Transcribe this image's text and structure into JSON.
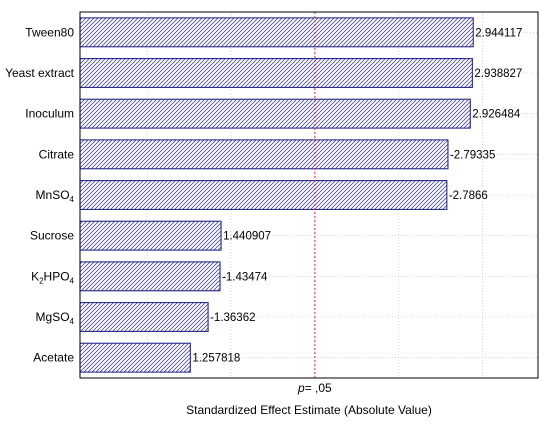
{
  "chart_data": {
    "type": "bar",
    "orientation": "horizontal",
    "title": "",
    "xlabel": "Standardized Effect Estimate (Absolute Value)",
    "ylabel": "",
    "categories": [
      "Tween80",
      "Yeast extract",
      "Inoculum",
      "Citrate",
      "MnSO4",
      "Sucrose",
      "K2HPO4",
      "MgSO4",
      "Acetate"
    ],
    "category_labels": [
      {
        "base": "Tween80",
        "sub": "",
        "sub_base": ""
      },
      {
        "base": "Yeast extract",
        "sub": "",
        "sub_base": ""
      },
      {
        "base": "Inoculum",
        "sub": "",
        "sub_base": ""
      },
      {
        "base": "Citrate",
        "sub": "",
        "sub_base": ""
      },
      {
        "base": "MnSO",
        "sub": "4",
        "sub_base": ""
      },
      {
        "base": "Sucrose",
        "sub": "",
        "sub_base": ""
      },
      {
        "base": "K",
        "sub": "2",
        "sub_base": "HPO",
        "sub2": "4"
      },
      {
        "base": "MgSO",
        "sub": "4",
        "sub_base": ""
      },
      {
        "base": "Acetate",
        "sub": "",
        "sub_base": ""
      }
    ],
    "values": [
      2.944117,
      2.938827,
      2.926484,
      2.79335,
      2.7866,
      1.440907,
      1.43474,
      1.36362,
      1.257818
    ],
    "value_labels": [
      "2.944117",
      "2.938827",
      "2.926484",
      "-2.79335",
      "-2.7866",
      "1.440907",
      "-1.43474",
      "-1.36362",
      "1.257818"
    ],
    "xlim": [
      0.6,
      3.33
    ],
    "reference_line": {
      "value": 2.0,
      "label_italic": "p",
      "label_rest": "= ,05"
    },
    "grid": true,
    "legend": "none",
    "colors": {
      "bar_stroke": "#2a2a8c",
      "hatch": "#4a4a9a",
      "ref_line": "#cc3344",
      "grid": "#bbbbbb"
    }
  }
}
